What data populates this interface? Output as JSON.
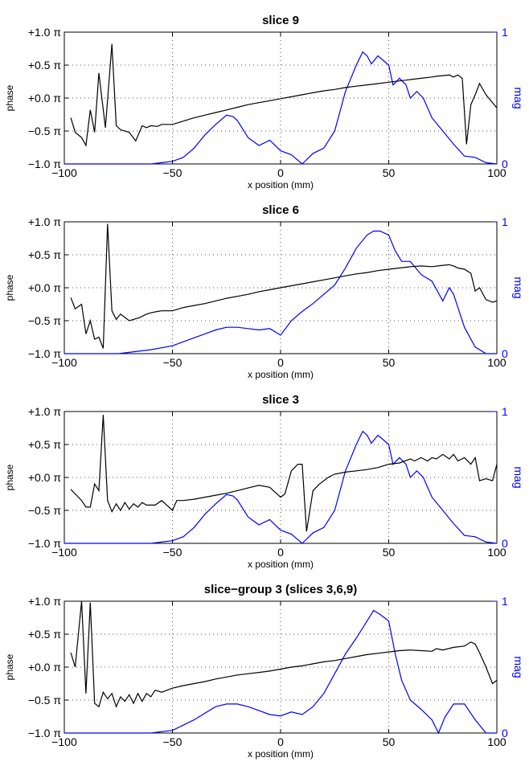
{
  "chart_data": [
    {
      "type": "line",
      "title": "slice 9",
      "xlabel": "x position (mm)",
      "ylabel": "phase",
      "y2label": "mag",
      "xlim": [
        -100,
        100
      ],
      "ylim": [
        -1.0,
        1.0
      ],
      "y2lim": [
        0,
        1
      ],
      "xticks": [
        "−100",
        "−50",
        "0",
        "50",
        "100"
      ],
      "yticks": [
        "−1.0 π",
        "−0.5 π",
        "+0.0 π",
        "+0.5 π",
        "+1.0 π"
      ],
      "y2ticks": [
        "0",
        "1"
      ],
      "grid": true,
      "phase_color": "#000000",
      "mag_color": "#0000ff",
      "x": [
        -97,
        -95,
        -92,
        -90,
        -88,
        -86,
        -84,
        -81,
        -78,
        -76,
        -74,
        -72,
        -70,
        -67,
        -64,
        -62,
        -60,
        -57,
        -55,
        -50,
        -45,
        -40,
        -35,
        -30,
        -25,
        -20,
        -15,
        -10,
        -5,
        0,
        5,
        10,
        15,
        20,
        25,
        30,
        35,
        40,
        45,
        50,
        55,
        60,
        65,
        70,
        72,
        75,
        78,
        80,
        82,
        84,
        86,
        88,
        90,
        92,
        95,
        100
      ],
      "phase": [
        -0.3,
        -0.52,
        -0.6,
        -0.72,
        -0.18,
        -0.52,
        0.38,
        -0.45,
        0.82,
        -0.42,
        -0.48,
        -0.5,
        -0.52,
        -0.65,
        -0.42,
        -0.45,
        -0.42,
        -0.43,
        -0.4,
        -0.4,
        -0.35,
        -0.3,
        -0.26,
        -0.22,
        -0.18,
        -0.14,
        -0.1,
        -0.07,
        -0.04,
        -0.01,
        0.02,
        0.05,
        0.08,
        0.11,
        0.13,
        0.16,
        0.18,
        0.2,
        0.22,
        0.24,
        0.26,
        0.28,
        0.3,
        0.32,
        0.33,
        0.34,
        0.35,
        0.32,
        0.35,
        0.3,
        -0.7,
        -0.1,
        0.05,
        0.22,
        0.05,
        -0.15
      ],
      "mag_x": [
        -100,
        -60,
        -55,
        -50,
        -45,
        -40,
        -35,
        -30,
        -25,
        -22,
        -20,
        -15,
        -10,
        -5,
        0,
        5,
        10,
        15,
        20,
        25,
        30,
        35,
        38,
        40,
        42,
        45,
        50,
        52,
        55,
        58,
        60,
        63,
        66,
        70,
        75,
        80,
        85,
        90,
        95,
        100
      ],
      "mag": [
        0,
        0,
        0.01,
        0.02,
        0.05,
        0.12,
        0.22,
        0.3,
        0.37,
        0.36,
        0.33,
        0.2,
        0.14,
        0.18,
        0.1,
        0.07,
        0,
        0.08,
        0.12,
        0.25,
        0.55,
        0.75,
        0.85,
        0.82,
        0.76,
        0.82,
        0.75,
        0.6,
        0.65,
        0.6,
        0.5,
        0.55,
        0.5,
        0.35,
        0.25,
        0.15,
        0.06,
        0.05,
        0.01,
        0
      ]
    },
    {
      "type": "line",
      "title": "slice 6",
      "xlabel": "x position (mm)",
      "ylabel": "phase",
      "y2label": "mag",
      "xlim": [
        -100,
        100
      ],
      "ylim": [
        -1.0,
        1.0
      ],
      "y2lim": [
        0,
        1
      ],
      "xticks": [
        "−100",
        "−50",
        "0",
        "50",
        "100"
      ],
      "yticks": [
        "−1.0 π",
        "−0.5 π",
        "+0.0 π",
        "+0.5 π",
        "+1.0 π"
      ],
      "y2ticks": [
        "0",
        "1"
      ],
      "grid": true,
      "phase_color": "#000000",
      "mag_color": "#0000ff",
      "x": [
        -97,
        -95,
        -92,
        -90,
        -88,
        -86,
        -84,
        -82,
        -80,
        -78,
        -76,
        -74,
        -72,
        -70,
        -68,
        -65,
        -62,
        -60,
        -57,
        -55,
        -50,
        -45,
        -40,
        -35,
        -30,
        -25,
        -20,
        -15,
        -10,
        -5,
        0,
        5,
        10,
        15,
        20,
        25,
        30,
        35,
        40,
        45,
        50,
        55,
        60,
        65,
        70,
        75,
        78,
        80,
        82,
        85,
        88,
        90,
        92,
        95,
        98,
        100
      ],
      "phase": [
        -0.15,
        -0.32,
        -0.25,
        -0.7,
        -0.5,
        -0.78,
        -0.75,
        -0.92,
        0.97,
        -0.35,
        -0.48,
        -0.4,
        -0.45,
        -0.5,
        -0.48,
        -0.45,
        -0.4,
        -0.38,
        -0.36,
        -0.35,
        -0.35,
        -0.3,
        -0.27,
        -0.24,
        -0.2,
        -0.16,
        -0.13,
        -0.1,
        -0.06,
        -0.03,
        0.0,
        0.03,
        0.06,
        0.09,
        0.12,
        0.15,
        0.18,
        0.21,
        0.23,
        0.26,
        0.28,
        0.3,
        0.32,
        0.33,
        0.32,
        0.34,
        0.35,
        0.33,
        0.3,
        0.28,
        0.22,
        -0.05,
        0.0,
        -0.18,
        -0.22,
        -0.2
      ],
      "mag_x": [
        -100,
        -75,
        -70,
        -60,
        -50,
        -40,
        -30,
        -25,
        -20,
        -15,
        -10,
        -5,
        0,
        5,
        10,
        15,
        20,
        25,
        30,
        35,
        40,
        43,
        46,
        50,
        53,
        56,
        60,
        65,
        70,
        75,
        78,
        80,
        85,
        90,
        95,
        100
      ],
      "mag": [
        0,
        0,
        0.01,
        0.03,
        0.06,
        0.12,
        0.18,
        0.2,
        0.2,
        0.19,
        0.18,
        0.19,
        0.14,
        0.25,
        0.32,
        0.38,
        0.45,
        0.52,
        0.65,
        0.8,
        0.9,
        0.93,
        0.93,
        0.9,
        0.78,
        0.7,
        0.7,
        0.6,
        0.55,
        0.4,
        0.5,
        0.45,
        0.2,
        0.05,
        0,
        0
      ]
    },
    {
      "type": "line",
      "title": "slice 3",
      "xlabel": "x position (mm)",
      "ylabel": "phase",
      "y2label": "mag",
      "xlim": [
        -100,
        100
      ],
      "ylim": [
        -1.0,
        1.0
      ],
      "y2lim": [
        0,
        1
      ],
      "xticks": [
        "−100",
        "−50",
        "0",
        "50",
        "100"
      ],
      "yticks": [
        "−1.0 π",
        "−0.5 π",
        "+0.0 π",
        "+0.5 π",
        "+1.0 π"
      ],
      "y2ticks": [
        "0",
        "1"
      ],
      "grid": true,
      "phase_color": "#000000",
      "mag_color": "#0000ff",
      "x": [
        -97,
        -95,
        -92,
        -90,
        -88,
        -86,
        -84,
        -82,
        -80,
        -78,
        -76,
        -74,
        -72,
        -70,
        -68,
        -66,
        -64,
        -62,
        -58,
        -55,
        -50,
        -48,
        -45,
        -40,
        -35,
        -30,
        -25,
        -20,
        -15,
        -10,
        -5,
        0,
        2,
        5,
        8,
        10,
        12,
        15,
        18,
        22,
        25,
        30,
        35,
        40,
        45,
        50,
        55,
        60,
        62,
        65,
        68,
        70,
        72,
        75,
        78,
        80,
        82,
        85,
        88,
        90,
        92,
        95,
        98,
        100
      ],
      "phase": [
        -0.18,
        -0.25,
        -0.35,
        -0.45,
        -0.45,
        -0.1,
        -0.2,
        0.95,
        -0.35,
        -0.52,
        -0.4,
        -0.5,
        -0.38,
        -0.48,
        -0.4,
        -0.45,
        -0.38,
        -0.42,
        -0.42,
        -0.35,
        -0.5,
        -0.35,
        -0.35,
        -0.33,
        -0.3,
        -0.27,
        -0.24,
        -0.2,
        -0.16,
        -0.12,
        -0.15,
        -0.3,
        -0.25,
        0.1,
        0.2,
        0.2,
        -0.82,
        -0.2,
        -0.1,
        0.0,
        0.05,
        0.08,
        0.1,
        0.12,
        0.15,
        0.2,
        0.22,
        0.28,
        0.25,
        0.3,
        0.25,
        0.3,
        0.28,
        0.35,
        0.28,
        0.35,
        0.25,
        0.3,
        0.2,
        0.3,
        -0.05,
        -0.02,
        -0.05,
        0.2
      ],
      "mag_x": [
        -100,
        -60,
        -55,
        -50,
        -45,
        -40,
        -35,
        -30,
        -25,
        -22,
        -20,
        -15,
        -10,
        -5,
        0,
        5,
        10,
        15,
        20,
        25,
        30,
        35,
        38,
        40,
        42,
        45,
        50,
        52,
        55,
        58,
        60,
        63,
        66,
        70,
        75,
        80,
        85,
        90,
        95,
        100
      ],
      "mag": [
        0,
        0,
        0.01,
        0.02,
        0.05,
        0.12,
        0.22,
        0.3,
        0.37,
        0.36,
        0.33,
        0.2,
        0.14,
        0.18,
        0.1,
        0.07,
        0,
        0.08,
        0.12,
        0.25,
        0.55,
        0.75,
        0.85,
        0.82,
        0.76,
        0.82,
        0.75,
        0.6,
        0.65,
        0.6,
        0.5,
        0.55,
        0.5,
        0.35,
        0.25,
        0.15,
        0.06,
        0.05,
        0.01,
        0
      ]
    },
    {
      "type": "line",
      "title": "slice−group 3 (slices 3,6,9)",
      "xlabel": "x position (mm)",
      "ylabel": "phase",
      "y2label": "mag",
      "xlim": [
        -100,
        100
      ],
      "ylim": [
        -1.0,
        1.0
      ],
      "y2lim": [
        0,
        1
      ],
      "xticks": [
        "−100",
        "−50",
        "0",
        "50",
        "100"
      ],
      "yticks": [
        "−1.0 π",
        "−0.5 π",
        "+0.0 π",
        "+0.5 π",
        "+1.0 π"
      ],
      "y2ticks": [
        "0",
        "1"
      ],
      "grid": true,
      "phase_color": "#000000",
      "mag_color": "#0000ff",
      "x": [
        -97,
        -95,
        -92,
        -90,
        -88,
        -86,
        -84,
        -82,
        -80,
        -78,
        -76,
        -74,
        -72,
        -70,
        -68,
        -66,
        -64,
        -62,
        -60,
        -58,
        -55,
        -50,
        -45,
        -40,
        -35,
        -30,
        -25,
        -20,
        -15,
        -10,
        -5,
        0,
        5,
        10,
        15,
        20,
        25,
        30,
        35,
        40,
        45,
        50,
        55,
        60,
        65,
        70,
        72,
        75,
        80,
        85,
        88,
        90,
        92,
        95,
        98,
        100
      ],
      "phase": [
        0.22,
        0.0,
        1.0,
        -0.4,
        0.98,
        -0.55,
        -0.6,
        -0.38,
        -0.48,
        -0.4,
        -0.6,
        -0.45,
        -0.52,
        -0.42,
        -0.55,
        -0.4,
        -0.52,
        -0.4,
        -0.45,
        -0.35,
        -0.38,
        -0.32,
        -0.28,
        -0.25,
        -0.22,
        -0.18,
        -0.15,
        -0.12,
        -0.1,
        -0.08,
        -0.06,
        -0.03,
        0.0,
        0.02,
        0.05,
        0.08,
        0.1,
        0.13,
        0.16,
        0.19,
        0.21,
        0.23,
        0.25,
        0.26,
        0.25,
        0.24,
        0.28,
        0.26,
        0.3,
        0.32,
        0.38,
        0.35,
        0.22,
        0.0,
        -0.25,
        -0.2
      ],
      "mag_x": [
        -100,
        -60,
        -50,
        -45,
        -40,
        -35,
        -30,
        -25,
        -20,
        -15,
        -10,
        -5,
        0,
        5,
        10,
        15,
        20,
        25,
        30,
        35,
        40,
        43,
        46,
        50,
        53,
        56,
        60,
        65,
        70,
        73,
        76,
        80,
        85,
        90,
        95,
        100
      ],
      "mag": [
        0,
        0,
        0.02,
        0.06,
        0.1,
        0.15,
        0.2,
        0.22,
        0.22,
        0.2,
        0.17,
        0.14,
        0.13,
        0.16,
        0.14,
        0.2,
        0.3,
        0.45,
        0.6,
        0.72,
        0.85,
        0.93,
        0.9,
        0.85,
        0.6,
        0.4,
        0.25,
        0.18,
        0.1,
        0.0,
        0.12,
        0.22,
        0.22,
        0.1,
        0,
        0
      ]
    }
  ]
}
